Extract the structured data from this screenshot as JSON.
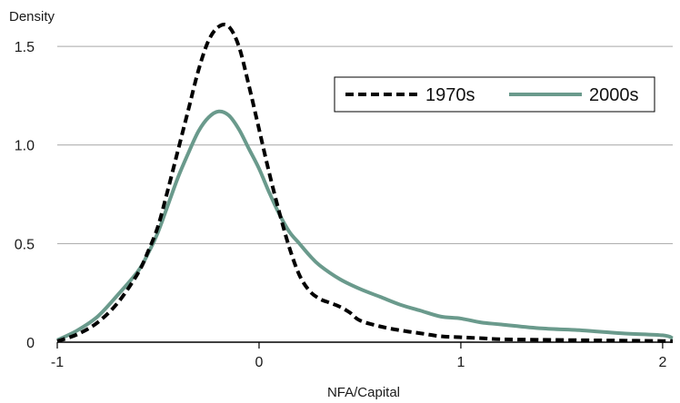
{
  "chart_data": {
    "type": "line",
    "title": "",
    "xlabel": "NFA/Capital",
    "ylabel": "Density",
    "xlim": [
      -1,
      2.05
    ],
    "ylim": [
      0,
      1.68
    ],
    "xticks": [
      -1,
      0,
      1,
      2
    ],
    "xtick_labels": [
      "-1",
      "0",
      "1",
      "2"
    ],
    "yticks": [
      0,
      0.5,
      1.0,
      1.5
    ],
    "ytick_labels": [
      "0",
      "0.5",
      "1.0",
      "1.5"
    ],
    "grid": "horizontal",
    "legend_position": "top-right",
    "series": [
      {
        "name": "1970s",
        "color": "#000000",
        "style": "dashed",
        "x": [
          -1.0,
          -0.9,
          -0.8,
          -0.7,
          -0.6,
          -0.55,
          -0.5,
          -0.45,
          -0.4,
          -0.35,
          -0.3,
          -0.25,
          -0.2,
          -0.15,
          -0.1,
          -0.05,
          0.0,
          0.05,
          0.1,
          0.15,
          0.2,
          0.25,
          0.3,
          0.35,
          0.4,
          0.45,
          0.5,
          0.6,
          0.7,
          0.8,
          0.9,
          1.0,
          1.1,
          1.2,
          1.4,
          1.6,
          1.8,
          2.0,
          2.05
        ],
        "y": [
          0.005,
          0.04,
          0.1,
          0.2,
          0.35,
          0.46,
          0.59,
          0.78,
          0.98,
          1.18,
          1.38,
          1.53,
          1.6,
          1.6,
          1.5,
          1.3,
          1.08,
          0.86,
          0.66,
          0.48,
          0.34,
          0.26,
          0.22,
          0.2,
          0.18,
          0.15,
          0.11,
          0.08,
          0.06,
          0.045,
          0.03,
          0.025,
          0.02,
          0.015,
          0.012,
          0.01,
          0.008,
          0.006,
          0.005
        ]
      },
      {
        "name": "2000s",
        "color": "#6a9a8c",
        "style": "solid",
        "x": [
          -1.0,
          -0.9,
          -0.8,
          -0.7,
          -0.6,
          -0.55,
          -0.5,
          -0.45,
          -0.4,
          -0.35,
          -0.3,
          -0.25,
          -0.2,
          -0.15,
          -0.1,
          -0.05,
          0.0,
          0.05,
          0.1,
          0.15,
          0.2,
          0.25,
          0.3,
          0.4,
          0.5,
          0.6,
          0.7,
          0.8,
          0.9,
          1.0,
          1.1,
          1.2,
          1.4,
          1.6,
          1.8,
          2.0,
          2.05
        ],
        "y": [
          0.01,
          0.06,
          0.13,
          0.24,
          0.36,
          0.45,
          0.56,
          0.7,
          0.84,
          0.96,
          1.07,
          1.14,
          1.17,
          1.15,
          1.08,
          0.98,
          0.88,
          0.76,
          0.65,
          0.56,
          0.5,
          0.44,
          0.39,
          0.32,
          0.27,
          0.23,
          0.19,
          0.16,
          0.13,
          0.12,
          0.1,
          0.09,
          0.07,
          0.06,
          0.045,
          0.035,
          0.02
        ]
      }
    ]
  }
}
